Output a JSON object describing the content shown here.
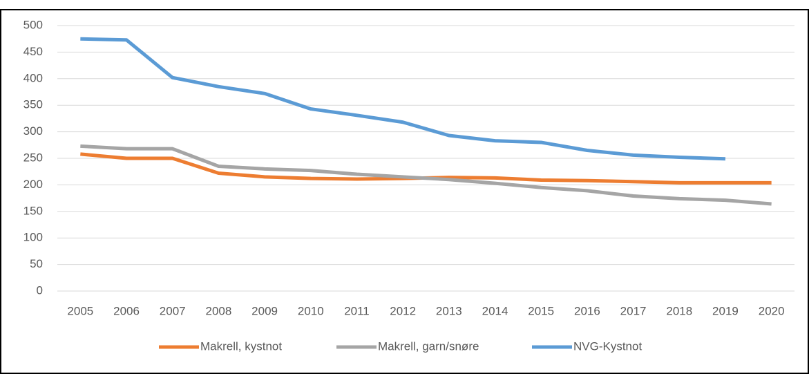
{
  "chart_data": {
    "type": "line",
    "categories": [
      "2005",
      "2006",
      "2007",
      "2008",
      "2009",
      "2010",
      "2011",
      "2012",
      "2013",
      "2014",
      "2015",
      "2016",
      "2017",
      "2018",
      "2019",
      "2020"
    ],
    "series": [
      {
        "name": "Makrell, kystnot",
        "color": "#ed7d31",
        "values": [
          258,
          250,
          250,
          222,
          215,
          212,
          211,
          212,
          214,
          213,
          209,
          208,
          206,
          204,
          204,
          204
        ]
      },
      {
        "name": "Makrell, garn/snøre",
        "color": "#a5a5a5",
        "values": [
          273,
          268,
          268,
          235,
          230,
          227,
          220,
          215,
          210,
          203,
          195,
          189,
          179,
          174,
          171,
          164
        ]
      },
      {
        "name": "NVG-Kystnot",
        "color": "#5b9bd5",
        "values": [
          475,
          473,
          402,
          385,
          372,
          343,
          331,
          318,
          293,
          283,
          280,
          265,
          256,
          252,
          249,
          null
        ]
      }
    ],
    "ylim": [
      0,
      500
    ],
    "yticks": [
      0,
      50,
      100,
      150,
      200,
      250,
      300,
      350,
      400,
      450,
      500
    ],
    "grid": true,
    "legend": "bottom"
  }
}
